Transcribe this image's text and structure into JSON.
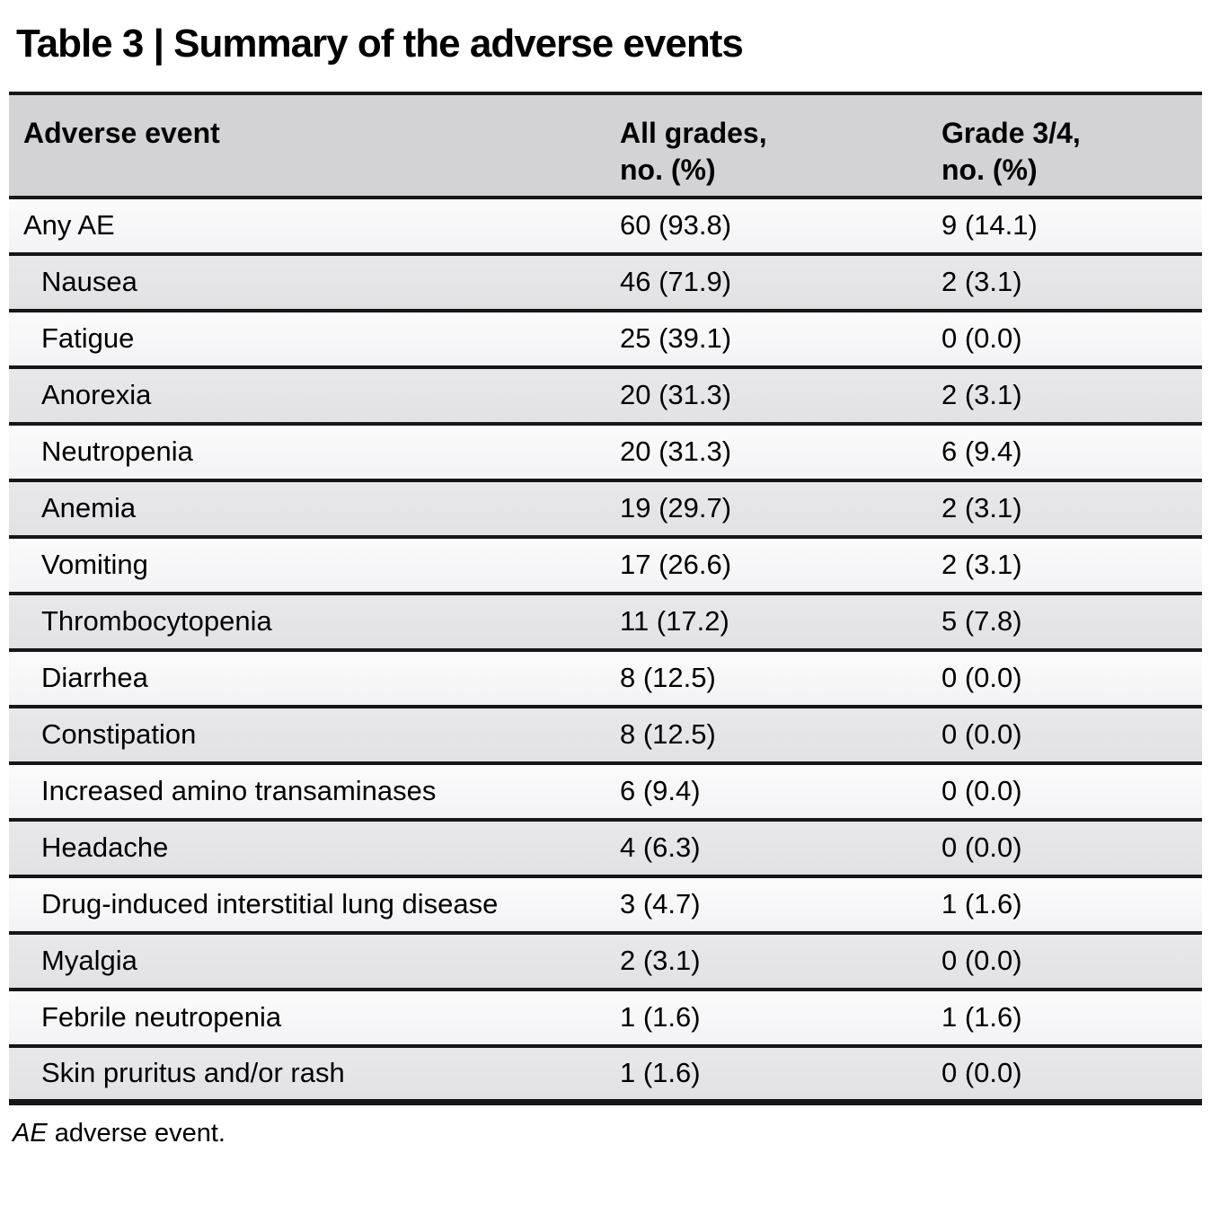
{
  "title": "Table 3 | Summary of the adverse events",
  "colors": {
    "header_bg": "#d3d3d5",
    "row_light": "#f3f3f5",
    "row_dark": "#e2e2e4",
    "border": "#161616"
  },
  "table": {
    "columns": [
      {
        "label": "Adverse event"
      },
      {
        "label": "All grades,\nno. (%)"
      },
      {
        "label": "Grade 3/4,\nno. (%)"
      }
    ],
    "rows": [
      {
        "event": "Any AE",
        "all_grades": "60 (93.8)",
        "grade_3_4": "9 (14.1)",
        "indent": false
      },
      {
        "event": "Nausea",
        "all_grades": "46 (71.9)",
        "grade_3_4": "2 (3.1)",
        "indent": true
      },
      {
        "event": "Fatigue",
        "all_grades": "25 (39.1)",
        "grade_3_4": "0 (0.0)",
        "indent": true
      },
      {
        "event": "Anorexia",
        "all_grades": "20 (31.3)",
        "grade_3_4": "2 (3.1)",
        "indent": true
      },
      {
        "event": "Neutropenia",
        "all_grades": "20 (31.3)",
        "grade_3_4": "6 (9.4)",
        "indent": true
      },
      {
        "event": "Anemia",
        "all_grades": "19 (29.7)",
        "grade_3_4": "2 (3.1)",
        "indent": true
      },
      {
        "event": "Vomiting",
        "all_grades": "17 (26.6)",
        "grade_3_4": "2 (3.1)",
        "indent": true
      },
      {
        "event": "Thrombocytopenia",
        "all_grades": "11 (17.2)",
        "grade_3_4": "5 (7.8)",
        "indent": true
      },
      {
        "event": "Diarrhea",
        "all_grades": "8 (12.5)",
        "grade_3_4": "0 (0.0)",
        "indent": true
      },
      {
        "event": "Constipation",
        "all_grades": "8 (12.5)",
        "grade_3_4": "0 (0.0)",
        "indent": true
      },
      {
        "event": "Increased amino transaminases",
        "all_grades": "6 (9.4)",
        "grade_3_4": "0 (0.0)",
        "indent": true
      },
      {
        "event": "Headache",
        "all_grades": "4 (6.3)",
        "grade_3_4": "0 (0.0)",
        "indent": true
      },
      {
        "event": "Drug-induced interstitial lung disease",
        "all_grades": "3 (4.7)",
        "grade_3_4": "1 (1.6)",
        "indent": true
      },
      {
        "event": "Myalgia",
        "all_grades": "2 (3.1)",
        "grade_3_4": "0 (0.0)",
        "indent": true
      },
      {
        "event": "Febrile neutropenia",
        "all_grades": "1 (1.6)",
        "grade_3_4": "1 (1.6)",
        "indent": true
      },
      {
        "event": "Skin pruritus and/or rash",
        "all_grades": "1 (1.6)",
        "grade_3_4": "0 (0.0)",
        "indent": true
      }
    ]
  },
  "footnote": {
    "abbr": "AE",
    "rest": " adverse event."
  }
}
